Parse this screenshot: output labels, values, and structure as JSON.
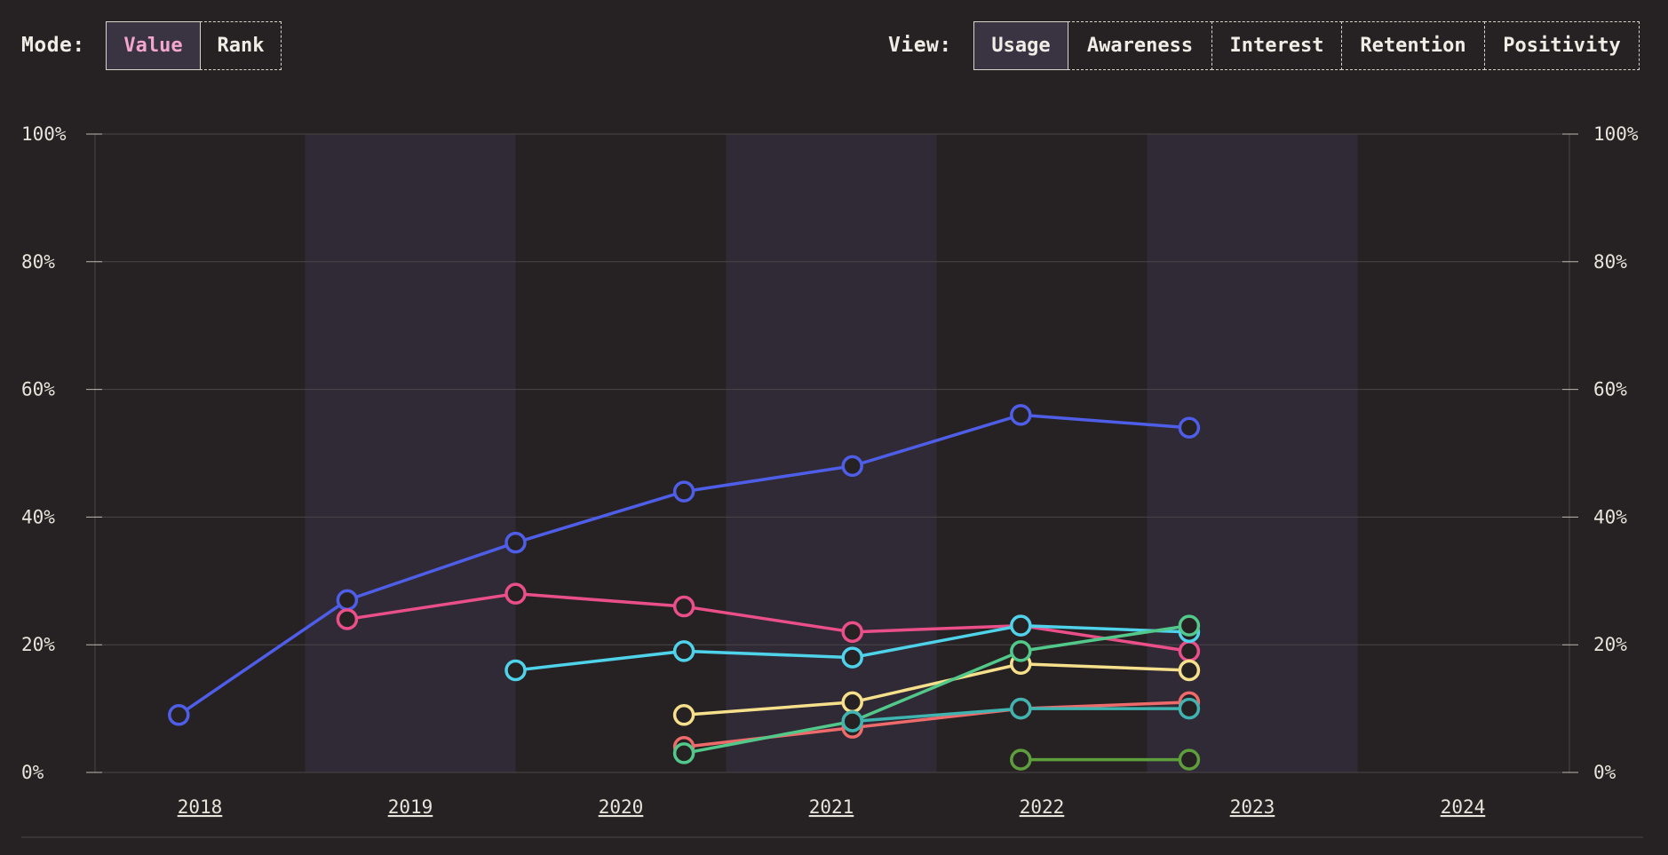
{
  "controls": {
    "mode_label": "Mode:",
    "mode_options": [
      "Value",
      "Rank"
    ],
    "mode_selected": "Value",
    "view_label": "View:",
    "view_options": [
      "Usage",
      "Awareness",
      "Interest",
      "Retention",
      "Positivity"
    ],
    "view_selected": "Usage"
  },
  "colors": {
    "background": "#262223",
    "band": "#2f2a35",
    "grid": "#4a4548",
    "text": "#e8e4dc",
    "mode_active_text": "#f3a6cf"
  },
  "chart_data": {
    "type": "line",
    "years": [
      "2018",
      "2019",
      "2020",
      "2021",
      "2022",
      "2023",
      "2024"
    ],
    "y_ticks": [
      "0%",
      "20%",
      "40%",
      "60%",
      "80%",
      "100%"
    ],
    "ylim": [
      0,
      100
    ],
    "grid": true,
    "alternating_year_bands": true,
    "series": [
      {
        "color": "#4f5ee8",
        "x": [
          2017.9,
          2018.7,
          2019.5,
          2020.3,
          2021.1,
          2021.9,
          2022.7
        ],
        "values": [
          9,
          27,
          36,
          44,
          48,
          56,
          54
        ]
      },
      {
        "color": "#ea4f8a",
        "x": [
          2018.7,
          2019.5,
          2020.3,
          2021.1,
          2021.9,
          2022.7
        ],
        "values": [
          24,
          28,
          26,
          22,
          23,
          19
        ]
      },
      {
        "color": "#4fd3ea",
        "x": [
          2019.5,
          2020.3,
          2021.1,
          2021.9,
          2022.7
        ],
        "values": [
          16,
          19,
          18,
          23,
          22
        ]
      },
      {
        "color": "#f7e08c",
        "x": [
          2020.3,
          2021.1,
          2021.9,
          2022.7
        ],
        "values": [
          9,
          11,
          17,
          16
        ]
      },
      {
        "color": "#ef6b6b",
        "x": [
          2020.3,
          2021.1,
          2021.9,
          2022.7
        ],
        "values": [
          4,
          7,
          10,
          11
        ]
      },
      {
        "color": "#52c98a",
        "x": [
          2020.3,
          2021.1,
          2021.9,
          2022.7
        ],
        "values": [
          3,
          8,
          19,
          23
        ]
      },
      {
        "color": "#3fb4b0",
        "x": [
          2021.1,
          2021.9,
          2022.7
        ],
        "values": [
          8,
          10,
          10
        ]
      },
      {
        "color": "#5e9e3c",
        "x": [
          2021.9,
          2022.7
        ],
        "values": [
          2,
          2
        ]
      }
    ]
  }
}
